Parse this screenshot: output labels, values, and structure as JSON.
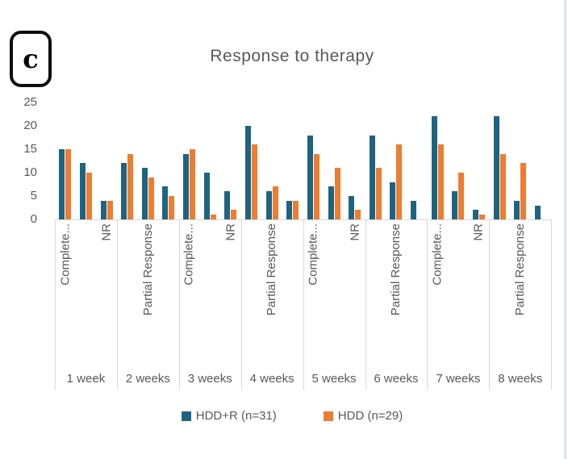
{
  "figure_label": "c",
  "chart_data": {
    "type": "bar",
    "title": "Response to therapy",
    "weeks": [
      "1 week",
      "2 weeks",
      "3 weeks",
      "4 weeks",
      "5 weeks",
      "6 weeks",
      "7 weeks",
      "8 weeks"
    ],
    "categories_per_week": [
      "Complete...",
      "Partial Response",
      "NR"
    ],
    "series": [
      {
        "name": "HDD+R (n=31)",
        "color": "#1E6480",
        "values": [
          [
            15,
            12,
            4
          ],
          [
            12,
            11,
            7
          ],
          [
            14,
            10,
            6
          ],
          [
            20,
            6,
            4
          ],
          [
            18,
            7,
            5
          ],
          [
            18,
            8,
            4
          ],
          [
            22,
            6,
            2
          ],
          [
            22,
            4,
            3
          ]
        ]
      },
      {
        "name": "HDD (n=29)",
        "color": "#ED7D31",
        "values": [
          [
            15,
            10,
            4
          ],
          [
            14,
            9,
            5
          ],
          [
            15,
            1,
            2
          ],
          [
            16,
            7,
            4
          ],
          [
            14,
            11,
            2
          ],
          [
            11,
            16,
            0
          ],
          [
            16,
            10,
            1
          ],
          [
            14,
            12,
            0
          ]
        ]
      }
    ],
    "ylim": [
      0,
      25
    ],
    "yticks": [
      0,
      5,
      10,
      15,
      20,
      25
    ],
    "grid": "off",
    "legend_position": "bottom",
    "category_label_interval": 2,
    "axis_color": "#d9d9d9",
    "text_color": "#595959"
  }
}
